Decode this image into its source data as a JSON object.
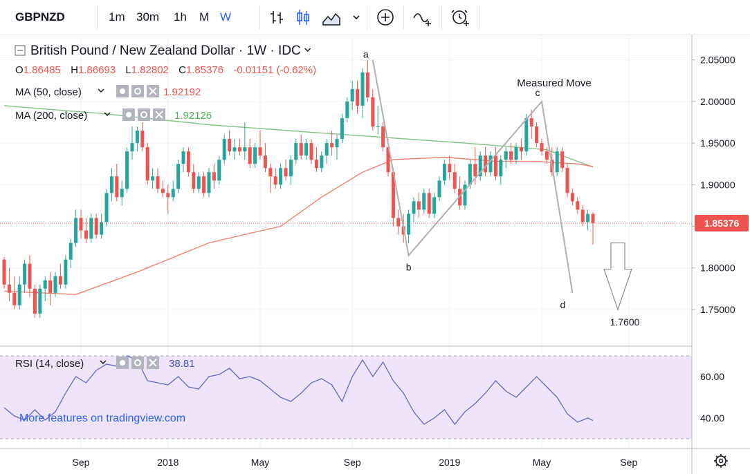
{
  "toolbar": {
    "symbol": "GBPNZD",
    "intervals": [
      "1m",
      "30m",
      "1h",
      "M",
      "W"
    ],
    "active_interval": "W",
    "icons": [
      "bar-chart-icon",
      "candlestick-icon",
      "area-chart-icon",
      "chevron-down-icon",
      "add-compare-icon",
      "indicators-icon",
      "alert-icon"
    ]
  },
  "legend": {
    "title": "British Pound / New Zealand Dollar · 1W · IDC",
    "ohlc": [
      {
        "label": "O",
        "value": "1.86485"
      },
      {
        "label": "H",
        "value": "1.86693"
      },
      {
        "label": "L",
        "value": "1.82802"
      },
      {
        "label": "C",
        "value": "1.85376"
      }
    ],
    "change": "-0.01151 (-0.62%)",
    "ma50_label": "MA (50, close)",
    "ma50_value": "1.92192",
    "ma200_label": "MA (200, close)",
    "ma200_value": "1.92126",
    "rsi_label": "RSI (14, close)",
    "rsi_value": "38.81",
    "watermark": "More features on tradingview.com"
  },
  "colors": {
    "up": "#26a69a",
    "down": "#ef5350",
    "ma50": "#f08070",
    "ma200": "#80c080",
    "rsi_line": "#5c6bc0",
    "rsi_band": "#efe3f9",
    "pattern": "#b0b0b0",
    "active_interval": "#2962ff",
    "price_label_bg": "#ef5350"
  },
  "chart_data": {
    "type": "candlestick",
    "price_axis": {
      "ticks": [
        "2.05000",
        "2.00000",
        "1.95000",
        "1.90000",
        "1.85000",
        "1.80000",
        "1.75000"
      ],
      "range": [
        1.715,
        2.068
      ]
    },
    "time_axis": {
      "ticks": [
        "Sep",
        "2018",
        "May",
        "Sep",
        "2019",
        "May",
        "Sep"
      ]
    },
    "last_price": "1.85376",
    "ohlc": [
      [
        1.81,
        1.813,
        1.775,
        1.78
      ],
      [
        1.78,
        1.8,
        1.76,
        1.77
      ],
      [
        1.77,
        1.79,
        1.75,
        1.755
      ],
      [
        1.755,
        1.79,
        1.75,
        1.78
      ],
      [
        1.78,
        1.81,
        1.77,
        1.805
      ],
      [
        1.805,
        1.815,
        1.765,
        1.775
      ],
      [
        1.775,
        1.78,
        1.74,
        1.745
      ],
      [
        1.745,
        1.78,
        1.74,
        1.775
      ],
      [
        1.775,
        1.79,
        1.76,
        1.785
      ],
      [
        1.785,
        1.795,
        1.755,
        1.77
      ],
      [
        1.77,
        1.795,
        1.765,
        1.79
      ],
      [
        1.79,
        1.805,
        1.775,
        1.78
      ],
      [
        1.78,
        1.815,
        1.775,
        1.81
      ],
      [
        1.81,
        1.835,
        1.8,
        1.83
      ],
      [
        1.83,
        1.87,
        1.825,
        1.86
      ],
      [
        1.86,
        1.87,
        1.835,
        1.845
      ],
      [
        1.845,
        1.86,
        1.83,
        1.835
      ],
      [
        1.835,
        1.865,
        1.83,
        1.86
      ],
      [
        1.86,
        1.865,
        1.835,
        1.84
      ],
      [
        1.84,
        1.865,
        1.835,
        1.855
      ],
      [
        1.855,
        1.895,
        1.85,
        1.89
      ],
      [
        1.89,
        1.92,
        1.88,
        1.91
      ],
      [
        1.91,
        1.925,
        1.88,
        1.885
      ],
      [
        1.885,
        1.905,
        1.875,
        1.895
      ],
      [
        1.895,
        1.945,
        1.89,
        1.94
      ],
      [
        1.94,
        1.97,
        1.93,
        1.95
      ],
      [
        1.95,
        1.97,
        1.94,
        1.965
      ],
      [
        1.965,
        1.975,
        1.94,
        1.945
      ],
      [
        1.945,
        1.95,
        1.9,
        1.905
      ],
      [
        1.905,
        1.92,
        1.895,
        1.91
      ],
      [
        1.91,
        1.92,
        1.89,
        1.895
      ],
      [
        1.895,
        1.905,
        1.885,
        1.89
      ],
      [
        1.89,
        1.9,
        1.865,
        1.885
      ],
      [
        1.885,
        1.905,
        1.88,
        1.895
      ],
      [
        1.895,
        1.93,
        1.89,
        1.925
      ],
      [
        1.925,
        1.945,
        1.915,
        1.94
      ],
      [
        1.94,
        1.945,
        1.91,
        1.915
      ],
      [
        1.915,
        1.925,
        1.89,
        1.895
      ],
      [
        1.895,
        1.915,
        1.89,
        1.91
      ],
      [
        1.91,
        1.915,
        1.885,
        1.89
      ],
      [
        1.89,
        1.92,
        1.885,
        1.915
      ],
      [
        1.915,
        1.925,
        1.895,
        1.905
      ],
      [
        1.905,
        1.935,
        1.9,
        1.93
      ],
      [
        1.93,
        1.96,
        1.925,
        1.955
      ],
      [
        1.955,
        1.965,
        1.935,
        1.94
      ],
      [
        1.94,
        1.955,
        1.93,
        1.945
      ],
      [
        1.945,
        1.955,
        1.935,
        1.94
      ],
      [
        1.94,
        1.975,
        1.93,
        1.945
      ],
      [
        1.945,
        1.955,
        1.92,
        1.925
      ],
      [
        1.925,
        1.95,
        1.92,
        1.945
      ],
      [
        1.945,
        1.965,
        1.93,
        1.935
      ],
      [
        1.935,
        1.95,
        1.915,
        1.92
      ],
      [
        1.92,
        1.925,
        1.89,
        1.91
      ],
      [
        1.91,
        1.92,
        1.895,
        1.9
      ],
      [
        1.9,
        1.925,
        1.895,
        1.92
      ],
      [
        1.92,
        1.93,
        1.905,
        1.91
      ],
      [
        1.91,
        1.935,
        1.9,
        1.93
      ],
      [
        1.93,
        1.955,
        1.925,
        1.95
      ],
      [
        1.95,
        1.96,
        1.93,
        1.935
      ],
      [
        1.935,
        1.955,
        1.93,
        1.95
      ],
      [
        1.95,
        1.955,
        1.925,
        1.93
      ],
      [
        1.93,
        1.945,
        1.915,
        1.92
      ],
      [
        1.92,
        1.94,
        1.915,
        1.935
      ],
      [
        1.935,
        1.955,
        1.925,
        1.95
      ],
      [
        1.95,
        1.965,
        1.935,
        1.945
      ],
      [
        1.945,
        1.96,
        1.93,
        1.955
      ],
      [
        1.955,
        1.985,
        1.95,
        1.98
      ],
      [
        1.98,
        2.005,
        1.975,
        2.0
      ],
      [
        2.0,
        2.025,
        1.99,
        2.015
      ],
      [
        2.015,
        2.025,
        1.985,
        1.995
      ],
      [
        1.995,
        2.04,
        1.98,
        2.035
      ],
      [
        2.035,
        2.05,
        2.0,
        2.005
      ],
      [
        2.005,
        2.015,
        1.965,
        1.97
      ],
      [
        1.97,
        1.995,
        1.96,
        1.97
      ],
      [
        1.97,
        1.975,
        1.94,
        1.945
      ],
      [
        1.945,
        1.955,
        1.91,
        1.915
      ],
      [
        1.915,
        1.92,
        1.85,
        1.86
      ],
      [
        1.86,
        1.87,
        1.84,
        1.85
      ],
      [
        1.85,
        1.865,
        1.83,
        1.84
      ],
      [
        1.84,
        1.87,
        1.83,
        1.865
      ],
      [
        1.865,
        1.885,
        1.855,
        1.88
      ],
      [
        1.88,
        1.89,
        1.86,
        1.87
      ],
      [
        1.87,
        1.895,
        1.865,
        1.89
      ],
      [
        1.89,
        1.895,
        1.86,
        1.865
      ],
      [
        1.865,
        1.89,
        1.86,
        1.885
      ],
      [
        1.885,
        1.91,
        1.88,
        1.905
      ],
      [
        1.905,
        1.93,
        1.9,
        1.925
      ],
      [
        1.925,
        1.935,
        1.905,
        1.915
      ],
      [
        1.915,
        1.925,
        1.89,
        1.895
      ],
      [
        1.895,
        1.91,
        1.87,
        1.875
      ],
      [
        1.875,
        1.905,
        1.87,
        1.9
      ],
      [
        1.9,
        1.93,
        1.895,
        1.925
      ],
      [
        1.925,
        1.945,
        1.9,
        1.91
      ],
      [
        1.91,
        1.94,
        1.905,
        1.935
      ],
      [
        1.935,
        1.945,
        1.91,
        1.915
      ],
      [
        1.915,
        1.94,
        1.91,
        1.935
      ],
      [
        1.935,
        1.945,
        1.905,
        1.91
      ],
      [
        1.91,
        1.935,
        1.9,
        1.93
      ],
      [
        1.93,
        1.945,
        1.92,
        1.94
      ],
      [
        1.94,
        1.95,
        1.925,
        1.93
      ],
      [
        1.93,
        1.95,
        1.925,
        1.945
      ],
      [
        1.945,
        1.955,
        1.93,
        1.94
      ],
      [
        1.94,
        1.985,
        1.935,
        1.98
      ],
      [
        1.98,
        1.99,
        1.955,
        1.97
      ],
      [
        1.97,
        1.975,
        1.945,
        1.95
      ],
      [
        1.95,
        1.955,
        1.935,
        1.94
      ],
      [
        1.94,
        1.945,
        1.925,
        1.93
      ],
      [
        1.93,
        1.945,
        1.91,
        1.915
      ],
      [
        1.915,
        1.945,
        1.91,
        1.94
      ],
      [
        1.94,
        1.945,
        1.915,
        1.92
      ],
      [
        1.92,
        1.925,
        1.885,
        1.89
      ],
      [
        1.89,
        1.895,
        1.875,
        1.88
      ],
      [
        1.88,
        1.885,
        1.865,
        1.87
      ],
      [
        1.87,
        1.875,
        1.85,
        1.855
      ],
      [
        1.855,
        1.87,
        1.845,
        1.8649
      ],
      [
        1.8649,
        1.8669,
        1.828,
        1.8538
      ]
    ],
    "ma50": [
      [
        0,
        1.772
      ],
      [
        14,
        1.768
      ],
      [
        26,
        1.795
      ],
      [
        40,
        1.83
      ],
      [
        54,
        1.85
      ],
      [
        62,
        1.885
      ],
      [
        70,
        1.915
      ],
      [
        76,
        1.93
      ],
      [
        86,
        1.933
      ],
      [
        96,
        1.928
      ],
      [
        104,
        1.928
      ],
      [
        112,
        1.925
      ],
      [
        115,
        1.9219
      ]
    ],
    "ma200": [
      [
        0,
        1.995
      ],
      [
        20,
        1.985
      ],
      [
        40,
        1.972
      ],
      [
        60,
        1.963
      ],
      [
        76,
        1.956
      ],
      [
        90,
        1.95
      ],
      [
        100,
        1.945
      ],
      [
        106,
        1.942
      ],
      [
        112,
        1.928
      ],
      [
        115,
        1.9213
      ]
    ],
    "rsi": {
      "axis": {
        "ticks": [
          "60.00",
          "40.00"
        ],
        "range": [
          26,
          72
        ],
        "band": [
          30,
          70
        ]
      },
      "values": [
        [
          0,
          45
        ],
        [
          2,
          41
        ],
        [
          4,
          39
        ],
        [
          6,
          44
        ],
        [
          8,
          39
        ],
        [
          10,
          43
        ],
        [
          12,
          52
        ],
        [
          14,
          60
        ],
        [
          16,
          57
        ],
        [
          18,
          63
        ],
        [
          20,
          66
        ],
        [
          22,
          65
        ],
        [
          24,
          70
        ],
        [
          26,
          68
        ],
        [
          28,
          58
        ],
        [
          30,
          57
        ],
        [
          32,
          56
        ],
        [
          34,
          60
        ],
        [
          36,
          55
        ],
        [
          38,
          54
        ],
        [
          40,
          60
        ],
        [
          42,
          61
        ],
        [
          44,
          64
        ],
        [
          46,
          59
        ],
        [
          48,
          60
        ],
        [
          50,
          58
        ],
        [
          52,
          54
        ],
        [
          54,
          50
        ],
        [
          56,
          48
        ],
        [
          58,
          52
        ],
        [
          60,
          57
        ],
        [
          62,
          59
        ],
        [
          64,
          56
        ],
        [
          66,
          48
        ],
        [
          68,
          60
        ],
        [
          70,
          68
        ],
        [
          72,
          60
        ],
        [
          74,
          67
        ],
        [
          76,
          58
        ],
        [
          78,
          52
        ],
        [
          80,
          43
        ],
        [
          82,
          37
        ],
        [
          84,
          40
        ],
        [
          86,
          44
        ],
        [
          88,
          37
        ],
        [
          90,
          43
        ],
        [
          92,
          47
        ],
        [
          94,
          52
        ],
        [
          96,
          58
        ],
        [
          98,
          53
        ],
        [
          100,
          50
        ],
        [
          102,
          55
        ],
        [
          104,
          60
        ],
        [
          106,
          55
        ],
        [
          108,
          50
        ],
        [
          110,
          42
        ],
        [
          112,
          38
        ],
        [
          114,
          40
        ],
        [
          115,
          38.81
        ]
      ]
    },
    "annotations": {
      "title": "Measured Move",
      "points": [
        {
          "label": "a",
          "index": 72,
          "price": 2.05
        },
        {
          "label": "b",
          "index": 79,
          "price": 1.815
        },
        {
          "label": "c",
          "index": 105,
          "price": 2.0
        },
        {
          "label": "d",
          "index": 111,
          "price": 1.77
        }
      ],
      "target_label": "1.7600"
    }
  }
}
